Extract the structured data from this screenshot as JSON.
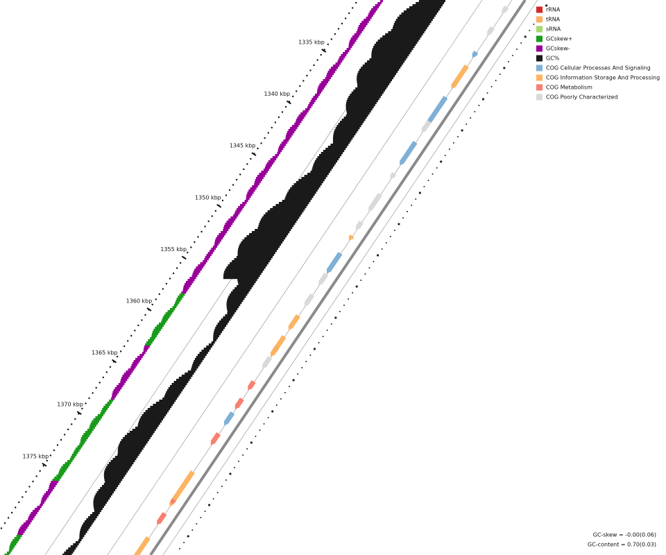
{
  "scale_labels": [
    "1335 kbp",
    "1340 kbp",
    "1345 kbp",
    "1350 kbp",
    "1355 kbp",
    "1360 kbp",
    "1365 kbp",
    "1370 kbp",
    "1375 kbp"
  ],
  "legend": [
    {
      "label": "rRNA",
      "color": "#d62728"
    },
    {
      "label": "tRNA",
      "color": "#fdae61"
    },
    {
      "label": "sRNA",
      "color": "#a6d96a"
    },
    {
      "label": "GCskew+",
      "color": "#1a9a1a"
    },
    {
      "label": "GCskew-",
      "color": "#990099"
    },
    {
      "label": "GC%",
      "color": "#1a1a1a"
    },
    {
      "label": "COG Cellular Processes And Signaling",
      "color": "#7fb0d6"
    },
    {
      "label": "COG Information Storage And Processing",
      "color": "#fdb462"
    },
    {
      "label": "COG Metabolism",
      "color": "#f88070"
    },
    {
      "label": "COG Poorly Characterized",
      "color": "#d9d9d9"
    }
  ],
  "stats": [
    "GC-skew = -0.00(0.06)",
    "GC-content = 0.70(0.03)"
  ]
}
